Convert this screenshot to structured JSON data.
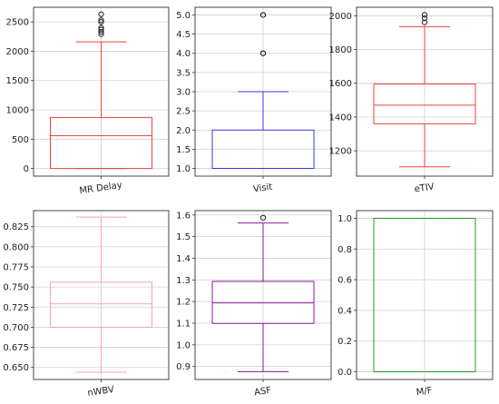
{
  "chart_data": [
    {
      "type": "boxplot",
      "category": "MR Delay",
      "color": "#e8453c",
      "ylim": [
        -130,
        2750
      ],
      "yticks": [
        0,
        500,
        1000,
        1500,
        2000,
        2500
      ],
      "box": {
        "whisker_low": 0,
        "q1": 0,
        "median": 560,
        "q3": 870,
        "whisker_high": 2160
      },
      "outliers": [
        2290,
        2330,
        2370,
        2400,
        2500,
        2530,
        2630
      ],
      "grid": true
    },
    {
      "type": "boxplot",
      "category": "Visit",
      "color": "#3a3ae0",
      "ylim": [
        0.8,
        5.2
      ],
      "yticks": [
        1.0,
        1.5,
        2.0,
        2.5,
        3.0,
        3.5,
        4.0,
        4.5,
        5.0
      ],
      "box": {
        "whisker_low": 1.0,
        "q1": 1.0,
        "median": 1.0,
        "q3": 2.0,
        "whisker_high": 3.0
      },
      "outliers": [
        4.0,
        4.0,
        5.0,
        5.0
      ],
      "grid": true
    },
    {
      "type": "boxplot",
      "category": "eTIV",
      "color": "#e8453c",
      "ylim": [
        1050,
        2050
      ],
      "yticks": [
        1200,
        1400,
        1600,
        1800,
        2000
      ],
      "box": {
        "whisker_low": 1105,
        "q1": 1360,
        "median": 1470,
        "q3": 1595,
        "whisker_high": 1935
      },
      "outliers": [
        1960,
        1985,
        2005
      ],
      "grid": true
    },
    {
      "type": "boxplot",
      "category": "nWBV",
      "color": "#f2a0c8",
      "ylim": [
        0.635,
        0.845
      ],
      "yticks": [
        0.65,
        0.675,
        0.7,
        0.725,
        0.75,
        0.775,
        0.8,
        0.825
      ],
      "ytick_labels": [
        "0.650",
        "0.675",
        "0.700",
        "0.725",
        "0.750",
        "0.775",
        "0.800",
        "0.825"
      ],
      "box": {
        "whisker_low": 0.644,
        "q1": 0.7,
        "median": 0.729,
        "q3": 0.756,
        "whisker_high": 0.837
      },
      "outliers": [],
      "grid": true
    },
    {
      "type": "boxplot",
      "category": "ASF",
      "color": "#8b1a9b",
      "ylim": [
        0.84,
        1.62
      ],
      "yticks": [
        0.9,
        1.0,
        1.1,
        1.2,
        1.3,
        1.4,
        1.5,
        1.6
      ],
      "box": {
        "whisker_low": 0.876,
        "q1": 1.099,
        "median": 1.194,
        "q3": 1.293,
        "whisker_high": 1.563
      },
      "outliers": [
        1.587
      ],
      "grid": true
    },
    {
      "type": "boxplot",
      "category": "M/F",
      "color": "#2a9a2a",
      "ylim": [
        -0.05,
        1.05
      ],
      "yticks": [
        0.0,
        0.2,
        0.4,
        0.6,
        0.8,
        1.0
      ],
      "box": {
        "whisker_low": 0,
        "q1": 0,
        "median": 0,
        "q3": 1,
        "whisker_high": 1
      },
      "outliers": [],
      "grid": true
    }
  ]
}
